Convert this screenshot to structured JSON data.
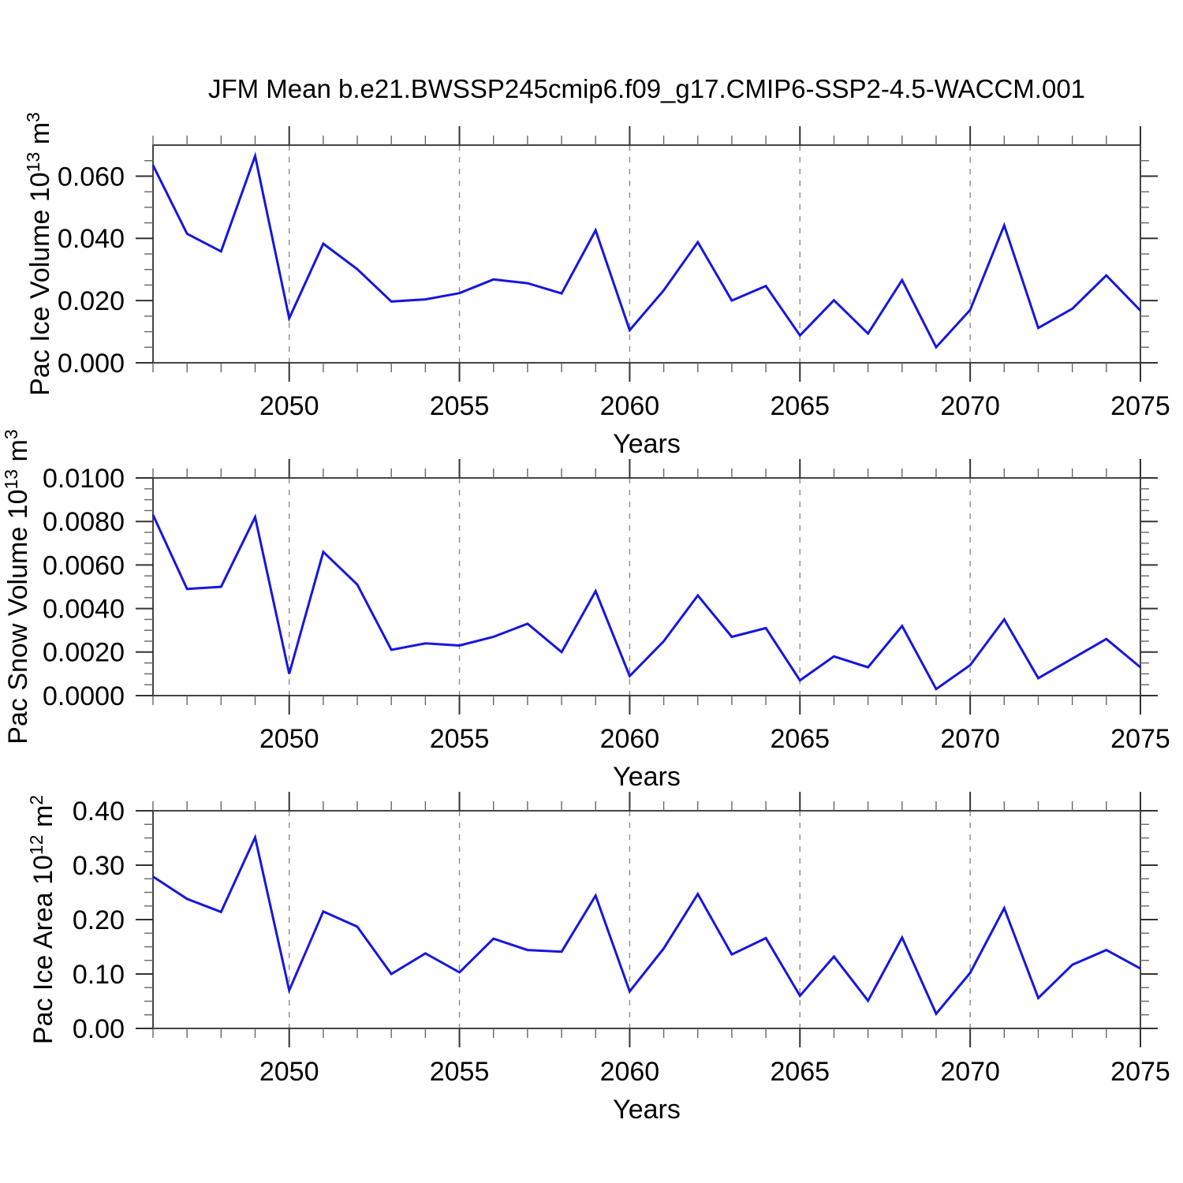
{
  "figure": {
    "title": "JFM Mean b.e21.BWSSP245cmip6.f09_g17.CMIP6-SSP2-4.5-WACCM.001",
    "background": "#ffffff",
    "line_color": "#1616e0",
    "grid_color": "#8c8c8c",
    "axis_color": "#444444",
    "tick_color": "#333333"
  },
  "x_axis": {
    "label": "Years",
    "start_year": 2046,
    "end_year": 2075,
    "minor_step_years": 1,
    "major_tick_years": [
      2050,
      2055,
      2060,
      2065,
      2070,
      2075
    ],
    "major_tick_labels": [
      "2050",
      "2055",
      "2060",
      "2065",
      "2070",
      "2075"
    ],
    "gridline_years": [
      2050,
      2055,
      2060,
      2065,
      2070
    ],
    "years": [
      2046,
      2047,
      2048,
      2049,
      2050,
      2051,
      2052,
      2053,
      2054,
      2055,
      2056,
      2057,
      2058,
      2059,
      2060,
      2061,
      2062,
      2063,
      2064,
      2065,
      2066,
      2067,
      2068,
      2069,
      2070,
      2071,
      2072,
      2073,
      2074,
      2075
    ]
  },
  "chart_data": [
    {
      "type": "line",
      "id": "pac-ice-volume",
      "title": "",
      "ylabel_text": "Pac Ice Volume",
      "ylabel_scale": "10",
      "ylabel_scale_exp": "13",
      "ylabel_unit": "m",
      "ylabel_unit_exp": "3",
      "xlabel": "Years",
      "ylim": [
        0,
        0.07
      ],
      "y_major_values": [
        0,
        0.02,
        0.04,
        0.06
      ],
      "y_major_labels": [
        "0.000",
        "0.020",
        "0.040",
        "0.060"
      ],
      "y_minor_step": 0.005,
      "grid": "vertical-dashed",
      "legend": "none",
      "values": [
        0.0635,
        0.0415,
        0.0358,
        0.0665,
        0.0143,
        0.0383,
        0.0301,
        0.0197,
        0.0204,
        0.0224,
        0.0268,
        0.0256,
        0.0223,
        0.0426,
        0.0105,
        0.0233,
        0.0388,
        0.02,
        0.0247,
        0.0088,
        0.0201,
        0.0094,
        0.0266,
        0.005,
        0.017,
        0.0442,
        0.0112,
        0.0174,
        0.0281,
        0.0168
      ]
    },
    {
      "type": "line",
      "id": "pac-snow-volume",
      "title": "",
      "ylabel_text": "Pac Snow Volume",
      "ylabel_scale": "10",
      "ylabel_scale_exp": "13",
      "ylabel_unit": "m",
      "ylabel_unit_exp": "3",
      "xlabel": "Years",
      "ylim": [
        0,
        0.01
      ],
      "y_major_values": [
        0,
        0.002,
        0.004,
        0.006,
        0.008,
        0.01
      ],
      "y_major_labels": [
        "0.0000",
        "0.0020",
        "0.0040",
        "0.0060",
        "0.0080",
        "0.0100"
      ],
      "y_minor_step": 0.0005,
      "grid": "vertical-dashed",
      "legend": "none",
      "values": [
        0.0083,
        0.0049,
        0.005,
        0.0082,
        0.001,
        0.0066,
        0.0051,
        0.0021,
        0.0024,
        0.0023,
        0.0027,
        0.0033,
        0.002,
        0.0048,
        0.0009,
        0.0025,
        0.0046,
        0.0027,
        0.0031,
        0.0007,
        0.0018,
        0.0013,
        0.0032,
        0.0003,
        0.0014,
        0.0035,
        0.0008,
        0.0017,
        0.0026,
        0.0013
      ]
    },
    {
      "type": "line",
      "id": "pac-ice-area",
      "title": "",
      "ylabel_text": "Pac Ice Area",
      "ylabel_scale": "10",
      "ylabel_scale_exp": "12",
      "ylabel_unit": "m",
      "ylabel_unit_exp": "2",
      "xlabel": "Years",
      "ylim": [
        0,
        0.4
      ],
      "y_major_values": [
        0,
        0.1,
        0.2,
        0.3,
        0.4
      ],
      "y_major_labels": [
        "0.00",
        "0.10",
        "0.20",
        "0.30",
        "0.40"
      ],
      "y_minor_step": 0.025,
      "grid": "vertical-dashed",
      "legend": "none",
      "values": [
        0.279,
        0.238,
        0.214,
        0.351,
        0.07,
        0.215,
        0.187,
        0.1,
        0.138,
        0.103,
        0.165,
        0.144,
        0.141,
        0.244,
        0.068,
        0.147,
        0.247,
        0.136,
        0.166,
        0.06,
        0.132,
        0.051,
        0.167,
        0.027,
        0.102,
        0.221,
        0.056,
        0.117,
        0.144,
        0.11
      ]
    }
  ]
}
